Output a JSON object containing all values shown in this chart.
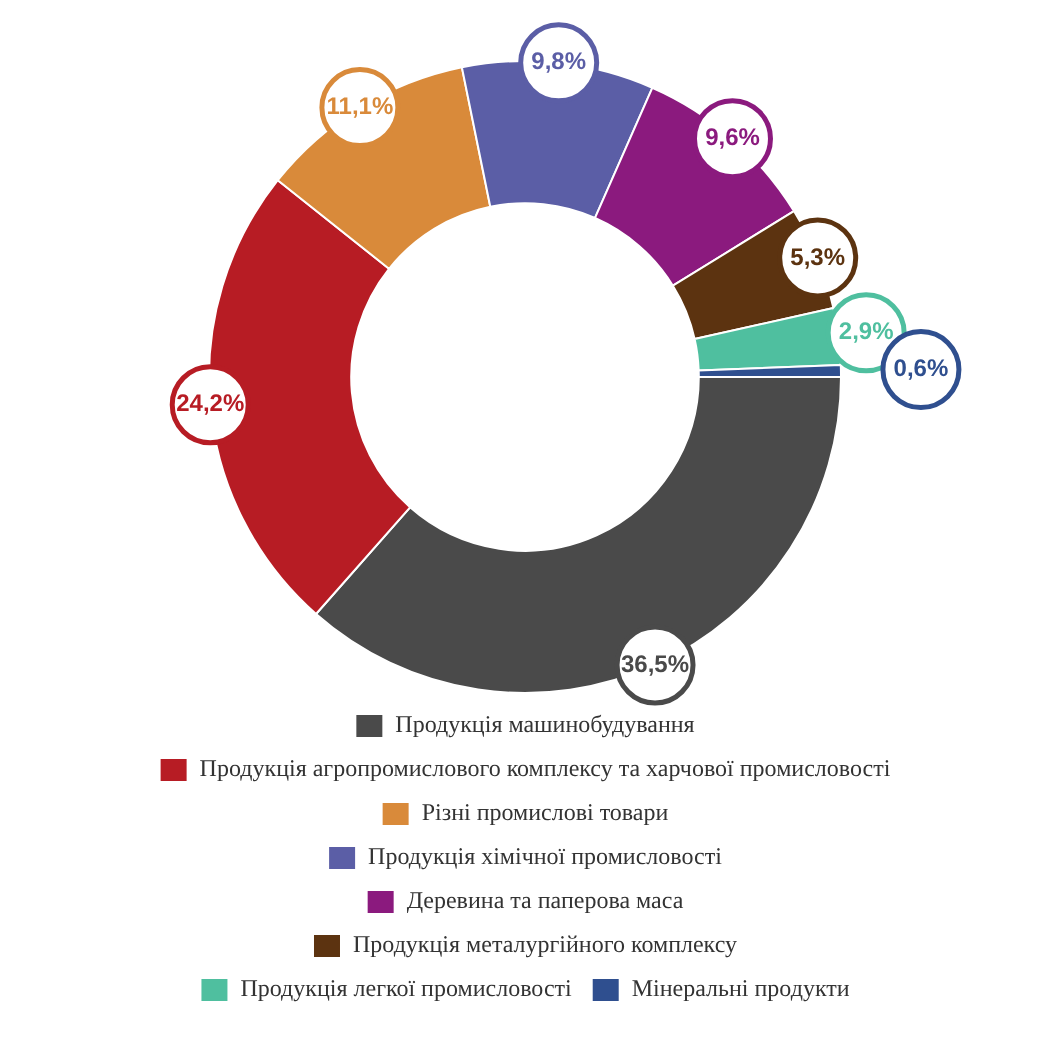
{
  "chart_data": {
    "type": "donut",
    "categories": [
      "Продукція машинобудування",
      "Продукція агропромислового комплексу та харчової промисловості",
      "Різні промислові товари",
      "Продукція хімічної промисловості",
      "Деревина та паперова маса",
      "Продукція металургійного комплексу",
      "Продукція легкої промисловості",
      "Мінеральні продукти"
    ],
    "values": [
      36.5,
      24.2,
      11.1,
      9.8,
      9.6,
      5.3,
      2.9,
      0.6
    ],
    "value_labels": [
      "36,5%",
      "24,2%",
      "11,1%",
      "9,8%",
      "9,6%",
      "5,3%",
      "2,9%",
      "0,6%"
    ],
    "colors": [
      "#4a4a4a",
      "#b71c24",
      "#d98a3a",
      "#5b5ea6",
      "#8b1a7e",
      "#5c3310",
      "#4fbf9f",
      "#2f4f8f"
    ],
    "legend": "bottom"
  }
}
